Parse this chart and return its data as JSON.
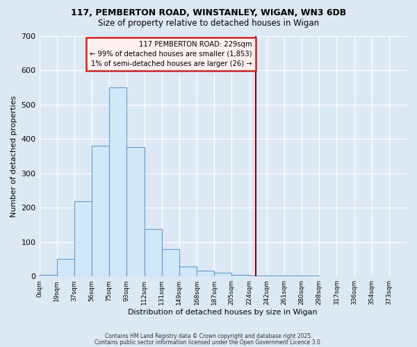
{
  "title_line1": "117, PEMBERTON ROAD, WINSTANLEY, WIGAN, WN3 6DB",
  "title_line2": "Size of property relative to detached houses in Wigan",
  "xlabel": "Distribution of detached houses by size in Wigan",
  "ylabel": "Number of detached properties",
  "bin_edges": [
    0,
    18.5,
    37,
    55.5,
    74,
    92.5,
    111,
    129.5,
    148,
    166.5,
    185,
    203.5,
    222,
    240.5,
    259,
    277.5,
    296,
    314.5,
    333,
    351.5,
    370,
    388.5
  ],
  "bin_heights": [
    5,
    50,
    218,
    380,
    550,
    375,
    138,
    80,
    28,
    16,
    10,
    5,
    3,
    2,
    2,
    2,
    1,
    1,
    1,
    1,
    1
  ],
  "tick_labels": [
    "0sqm",
    "19sqm",
    "37sqm",
    "56sqm",
    "75sqm",
    "93sqm",
    "112sqm",
    "131sqm",
    "149sqm",
    "168sqm",
    "187sqm",
    "205sqm",
    "224sqm",
    "242sqm",
    "261sqm",
    "280sqm",
    "298sqm",
    "317sqm",
    "336sqm",
    "354sqm",
    "373sqm"
  ],
  "bar_facecolor": "#d0e8f8",
  "bar_edgecolor": "#6699cc",
  "bg_color": "#dde8f5",
  "vline_x": 229,
  "vline_color": "#8b0000",
  "annotation_text": "117 PEMBERTON ROAD: 229sqm\n← 99% of detached houses are smaller (1,853)\n1% of semi-detached houses are larger (26) →",
  "annotation_facecolor": "#fff0f0",
  "annotation_edgecolor": "#cc2222",
  "ylim_max": 700,
  "yticks": [
    0,
    100,
    200,
    300,
    400,
    500,
    600,
    700
  ],
  "footnote1": "Contains HM Land Registry data © Crown copyright and database right 2025.",
  "footnote2": "Contains public sector information licensed under the Open Government Licence 3.0."
}
